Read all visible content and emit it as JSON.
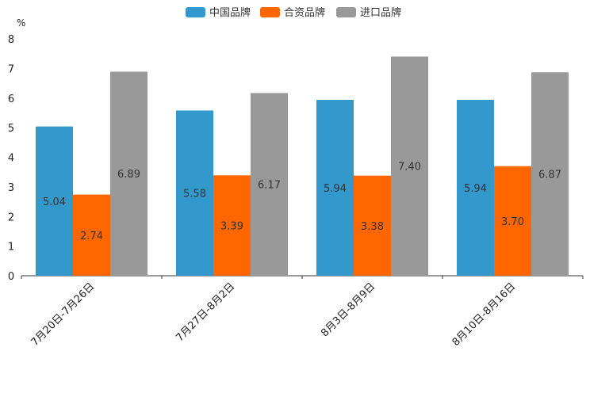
{
  "chart_data": {
    "type": "bar",
    "title": "",
    "ylabel": "%",
    "xlabel": "",
    "ylim": [
      0,
      8
    ],
    "yticks": [
      0,
      1,
      2,
      3,
      4,
      5,
      6,
      7,
      8
    ],
    "categories": [
      "7月20日-7月26日",
      "7月27日-8月2日",
      "8月3日-8月9日",
      "8月10日-8月16日"
    ],
    "series": [
      {
        "name": "中国品牌",
        "color": "#3399cc",
        "values": [
          5.04,
          5.58,
          5.94,
          5.94
        ],
        "labels": [
          "5.04",
          "5.58",
          "5.94",
          "5.94"
        ]
      },
      {
        "name": "合资品牌",
        "color": "#ff6600",
        "values": [
          2.74,
          3.39,
          3.38,
          3.7
        ],
        "labels": [
          "2.74",
          "3.39",
          "3.38",
          "3.70"
        ]
      },
      {
        "name": "进口品牌",
        "color": "#999999",
        "values": [
          6.89,
          6.17,
          7.4,
          6.87
        ],
        "labels": [
          "6.89",
          "6.17",
          "7.40",
          "6.87"
        ]
      }
    ],
    "legend_position": "top-center",
    "grid": false
  }
}
